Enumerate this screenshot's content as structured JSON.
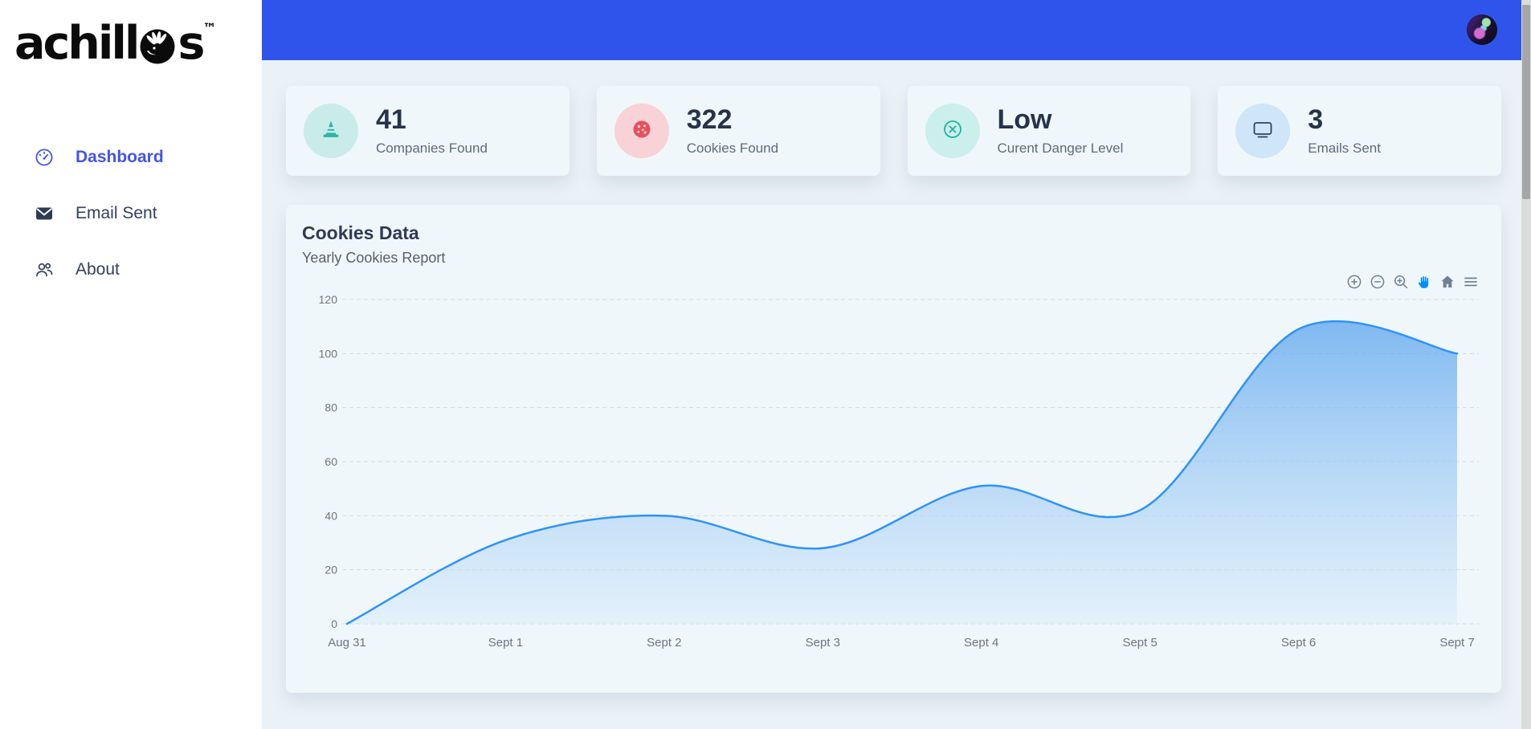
{
  "logo": {
    "word_start": "achill",
    "word_end": "s",
    "trademark": "™"
  },
  "sidebar": {
    "items": [
      {
        "label": "Dashboard",
        "icon": "gauge-icon",
        "active": true
      },
      {
        "label": "Email Sent",
        "icon": "mail-icon",
        "active": false
      },
      {
        "label": "About",
        "icon": "users-icon",
        "active": false
      }
    ]
  },
  "header": {
    "background": "#2F54EC"
  },
  "stats": [
    {
      "value": "41",
      "label": "Companies Found",
      "icon": "traffic-cone-icon",
      "accent": "#2BB5A8",
      "circle_bg": "#C9ECE8"
    },
    {
      "value": "322",
      "label": "Cookies Found",
      "icon": "cookie-icon",
      "accent": "#E94F5C",
      "circle_bg": "#F8D2D6"
    },
    {
      "value": "Low",
      "label": "Curent Danger Level",
      "icon": "x-circle-icon",
      "accent": "#1FB3A5",
      "circle_bg": "#CBEFEA"
    },
    {
      "value": "3",
      "label": "Emails Sent",
      "icon": "monitor-icon",
      "accent": "#33415C",
      "circle_bg": "#CFE5F8"
    }
  ],
  "chart_data": {
    "type": "area",
    "title": "Cookies Data",
    "subtitle": "Yearly Cookies Report",
    "categories": [
      "Aug 31",
      "Sept 1",
      "Sept 2",
      "Sept 3",
      "Sept 4",
      "Sept 5",
      "Sept 6",
      "Sept 7"
    ],
    "values": [
      0,
      31,
      40,
      28,
      51,
      42,
      109,
      100
    ],
    "ylim": [
      0,
      120
    ],
    "yticks": [
      0,
      20,
      40,
      60,
      80,
      100,
      120
    ],
    "xlabel": "",
    "ylabel": "",
    "grid": "horizontal-dashed",
    "legend": "none",
    "line_color": "#2E93FA",
    "area_top_color": "#63A9EE",
    "area_bottom_color": "#D8EBFB",
    "axis_label_color": "#6b7684",
    "toolbar_icon_color": "#6E8192",
    "pan_active_color": "#008FFB",
    "toolbar": [
      "zoom-in",
      "zoom-out",
      "selection-zoom",
      "pan",
      "home",
      "menu"
    ]
  }
}
